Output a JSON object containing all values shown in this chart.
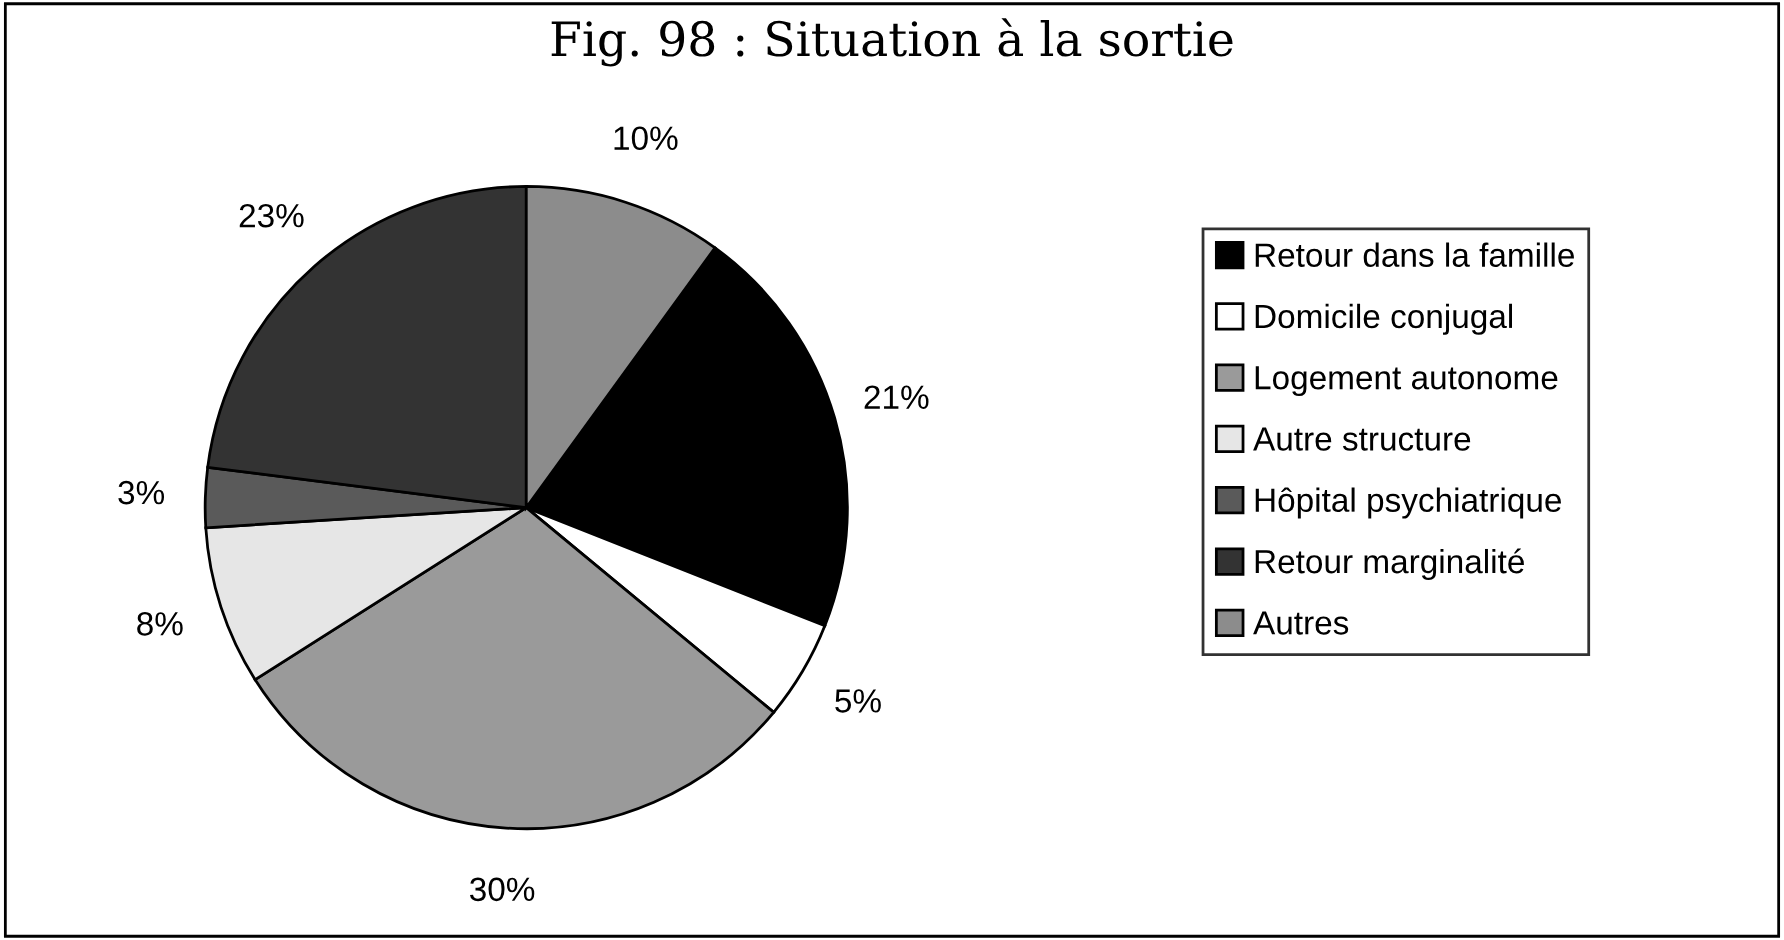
{
  "chart_data": {
    "type": "pie",
    "title": "Fig. 98 : Situation à la sortie",
    "categories": [
      "Retour dans la famille",
      "Domicile conjugal",
      "Logement autonome",
      "Autre structure",
      "Hôpital psychiatrique",
      "Retour marginalité",
      "Autres"
    ],
    "values": [
      21,
      5,
      30,
      8,
      3,
      23,
      10
    ],
    "value_labels": [
      "21%",
      "5%",
      "30%",
      "8%",
      "3%",
      "23%",
      "10%"
    ],
    "colors": [
      "#000000",
      "#ffffff",
      "#9a9a9a",
      "#e6e6e6",
      "#5a5a5a",
      "#333333",
      "#8c8c8c"
    ],
    "legend": "right"
  }
}
